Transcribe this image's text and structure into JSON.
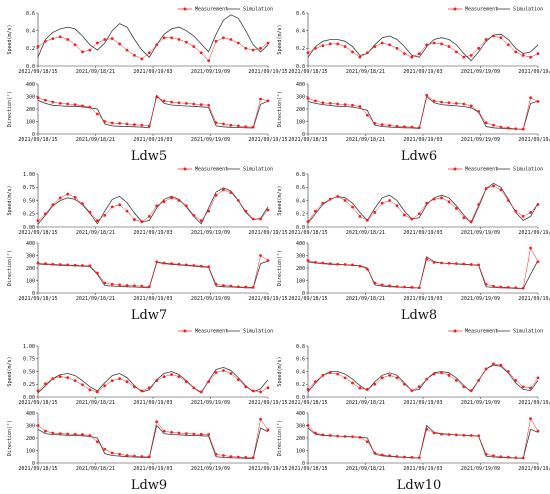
{
  "legend": {
    "measurement": "Measurement",
    "simulation": "Simulation"
  },
  "labels": {
    "speed": "Speed(m/s)",
    "direction": "Direction(°)"
  },
  "x_ticks": [
    "2021/09/18/15",
    "2021/09/18/21",
    "2021/09/19/03",
    "2021/09/19/09",
    "2021/09/19/15"
  ],
  "colors": {
    "measurement": "#ff1a1a",
    "simulation": "#3c3c3c",
    "axis": "#333333"
  },
  "chart_data": [
    {
      "type": "line",
      "caption": "Ldw5",
      "speed": {
        "ylim": [
          0,
          0.6
        ],
        "yticks": [
          "0.0",
          "0.2",
          "0.4",
          "0.6"
        ],
        "measurement": [
          0.22,
          0.28,
          0.31,
          0.33,
          0.3,
          0.24,
          0.16,
          0.18,
          0.26,
          0.3,
          0.31,
          0.25,
          0.18,
          0.12,
          0.08,
          0.15,
          0.24,
          0.32,
          0.32,
          0.3,
          0.27,
          0.22,
          0.15,
          0.06,
          0.28,
          0.32,
          0.3,
          0.26,
          0.2,
          0.18,
          0.2,
          0.26
        ],
        "simulation": [
          0.1,
          0.3,
          0.38,
          0.42,
          0.44,
          0.42,
          0.34,
          0.24,
          0.18,
          0.26,
          0.4,
          0.48,
          0.44,
          0.3,
          0.18,
          0.1,
          0.24,
          0.36,
          0.42,
          0.44,
          0.4,
          0.34,
          0.25,
          0.16,
          0.36,
          0.52,
          0.58,
          0.54,
          0.4,
          0.24,
          0.16,
          0.24
        ]
      },
      "direction": {
        "ylim": [
          0,
          400
        ],
        "yticks": [
          "0",
          "100",
          "200",
          "300",
          "400"
        ],
        "measurement": [
          290,
          270,
          255,
          245,
          240,
          235,
          225,
          215,
          160,
          100,
          88,
          85,
          80,
          75,
          70,
          65,
          295,
          265,
          255,
          250,
          245,
          240,
          235,
          230,
          90,
          80,
          70,
          65,
          58,
          55,
          280,
          265
        ],
        "simulation": [
          270,
          245,
          230,
          225,
          222,
          222,
          218,
          210,
          200,
          80,
          65,
          62,
          60,
          58,
          55,
          50,
          310,
          245,
          232,
          228,
          224,
          222,
          218,
          212,
          65,
          58,
          54,
          52,
          50,
          48,
          238,
          262
        ]
      }
    },
    {
      "type": "line",
      "caption": "Ldw6",
      "speed": {
        "ylim": [
          0,
          0.6
        ],
        "yticks": [
          "0.0",
          "0.2",
          "0.4",
          "0.6"
        ],
        "measurement": [
          0.15,
          0.2,
          0.23,
          0.25,
          0.25,
          0.22,
          0.16,
          0.1,
          0.15,
          0.22,
          0.26,
          0.24,
          0.2,
          0.14,
          0.1,
          0.14,
          0.24,
          0.26,
          0.25,
          0.22,
          0.16,
          0.1,
          0.12,
          0.2,
          0.3,
          0.34,
          0.32,
          0.24,
          0.16,
          0.12,
          0.1,
          0.14
        ],
        "simulation": [
          0.1,
          0.22,
          0.28,
          0.3,
          0.3,
          0.28,
          0.22,
          0.12,
          0.14,
          0.24,
          0.32,
          0.34,
          0.3,
          0.22,
          0.12,
          0.1,
          0.22,
          0.3,
          0.32,
          0.3,
          0.24,
          0.14,
          0.06,
          0.16,
          0.28,
          0.35,
          0.36,
          0.3,
          0.2,
          0.14,
          0.16,
          0.24
        ]
      },
      "direction": {
        "ylim": [
          0,
          400
        ],
        "yticks": [
          "0",
          "100",
          "200",
          "300",
          "400"
        ],
        "measurement": [
          285,
          265,
          250,
          245,
          240,
          235,
          230,
          220,
          150,
          85,
          75,
          68,
          62,
          58,
          55,
          50,
          310,
          265,
          255,
          250,
          245,
          240,
          225,
          180,
          90,
          70,
          55,
          48,
          42,
          38,
          290,
          260
        ],
        "simulation": [
          260,
          245,
          235,
          228,
          222,
          220,
          215,
          205,
          190,
          70,
          60,
          55,
          52,
          50,
          48,
          45,
          300,
          250,
          235,
          230,
          225,
          220,
          210,
          175,
          60,
          50,
          45,
          42,
          40,
          38,
          245,
          262
        ]
      }
    },
    {
      "type": "line",
      "caption": "Ldw7",
      "speed": {
        "ylim": [
          0,
          1.0
        ],
        "yticks": [
          "0.00",
          "0.25",
          "0.50",
          "0.75",
          "1.00"
        ],
        "measurement": [
          0.12,
          0.25,
          0.42,
          0.55,
          0.62,
          0.56,
          0.44,
          0.28,
          0.12,
          0.22,
          0.38,
          0.42,
          0.3,
          0.14,
          0.1,
          0.2,
          0.4,
          0.48,
          0.55,
          0.5,
          0.4,
          0.22,
          0.12,
          0.3,
          0.6,
          0.7,
          0.65,
          0.5,
          0.3,
          0.15,
          0.15,
          0.32
        ],
        "simulation": [
          0.05,
          0.22,
          0.4,
          0.5,
          0.55,
          0.52,
          0.42,
          0.26,
          0.06,
          0.3,
          0.52,
          0.58,
          0.46,
          0.26,
          0.1,
          0.12,
          0.36,
          0.52,
          0.58,
          0.52,
          0.38,
          0.2,
          0.06,
          0.36,
          0.66,
          0.74,
          0.68,
          0.5,
          0.28,
          0.14,
          0.16,
          0.38
        ]
      },
      "direction": {
        "ylim": [
          0,
          400
        ],
        "yticks": [
          "0",
          "100",
          "200",
          "300",
          "400"
        ],
        "measurement": [
          240,
          235,
          230,
          228,
          225,
          222,
          220,
          218,
          160,
          80,
          70,
          65,
          60,
          58,
          55,
          50,
          250,
          240,
          235,
          230,
          225,
          220,
          215,
          210,
          70,
          60,
          55,
          50,
          48,
          45,
          300,
          260
        ],
        "simulation": [
          232,
          228,
          225,
          222,
          220,
          218,
          215,
          212,
          150,
          60,
          55,
          52,
          50,
          48,
          45,
          42,
          245,
          235,
          230,
          225,
          220,
          215,
          210,
          205,
          55,
          50,
          48,
          45,
          42,
          40,
          235,
          255
        ]
      }
    },
    {
      "type": "line",
      "caption": "Ldw8",
      "speed": {
        "ylim": [
          0,
          0.8
        ],
        "yticks": [
          "0.0",
          "0.2",
          "0.4",
          "0.6",
          "0.8"
        ],
        "measurement": [
          0.08,
          0.24,
          0.36,
          0.42,
          0.46,
          0.4,
          0.3,
          0.16,
          0.1,
          0.22,
          0.36,
          0.4,
          0.32,
          0.18,
          0.12,
          0.2,
          0.36,
          0.42,
          0.44,
          0.38,
          0.28,
          0.14,
          0.08,
          0.34,
          0.58,
          0.62,
          0.56,
          0.4,
          0.24,
          0.16,
          0.22,
          0.34
        ],
        "simulation": [
          0.06,
          0.2,
          0.34,
          0.42,
          0.46,
          0.44,
          0.36,
          0.22,
          0.1,
          0.28,
          0.44,
          0.48,
          0.4,
          0.24,
          0.12,
          0.14,
          0.34,
          0.44,
          0.48,
          0.44,
          0.32,
          0.18,
          0.06,
          0.3,
          0.58,
          0.66,
          0.6,
          0.42,
          0.22,
          0.1,
          0.16,
          0.36
        ]
      },
      "direction": {
        "ylim": [
          0,
          400
        ],
        "yticks": [
          "0",
          "100",
          "200",
          "300",
          "400"
        ],
        "measurement": [
          260,
          245,
          240,
          235,
          230,
          228,
          225,
          215,
          190,
          80,
          65,
          58,
          52,
          48,
          45,
          42,
          270,
          245,
          240,
          238,
          235,
          232,
          228,
          225,
          70,
          55,
          48,
          45,
          42,
          38,
          360,
          250
        ],
        "simulation": [
          250,
          240,
          235,
          230,
          228,
          225,
          222,
          218,
          200,
          65,
          55,
          50,
          48,
          45,
          42,
          40,
          290,
          250,
          240,
          235,
          232,
          228,
          225,
          222,
          50,
          45,
          42,
          40,
          38,
          35,
          150,
          260
        ]
      }
    },
    {
      "type": "line",
      "caption": "Ldw9",
      "speed": {
        "ylim": [
          0,
          1.0
        ],
        "yticks": [
          "0.00",
          "0.25",
          "0.50",
          "0.75",
          "1.00"
        ],
        "measurement": [
          0.12,
          0.26,
          0.36,
          0.4,
          0.38,
          0.32,
          0.24,
          0.14,
          0.1,
          0.22,
          0.32,
          0.36,
          0.3,
          0.2,
          0.12,
          0.18,
          0.32,
          0.4,
          0.44,
          0.4,
          0.3,
          0.18,
          0.1,
          0.3,
          0.48,
          0.52,
          0.46,
          0.34,
          0.2,
          0.12,
          0.1,
          0.18
        ],
        "simulation": [
          0.08,
          0.22,
          0.36,
          0.44,
          0.46,
          0.42,
          0.32,
          0.2,
          0.12,
          0.28,
          0.42,
          0.46,
          0.38,
          0.22,
          0.1,
          0.14,
          0.34,
          0.46,
          0.5,
          0.44,
          0.32,
          0.18,
          0.08,
          0.32,
          0.54,
          0.58,
          0.52,
          0.38,
          0.22,
          0.1,
          0.16,
          0.34
        ]
      },
      "direction": {
        "ylim": [
          0,
          400
        ],
        "yticks": [
          "0",
          "100",
          "200",
          "300",
          "400"
        ],
        "measurement": [
          300,
          255,
          240,
          235,
          232,
          230,
          228,
          220,
          170,
          110,
          80,
          70,
          60,
          55,
          52,
          50,
          330,
          255,
          245,
          240,
          235,
          232,
          230,
          228,
          70,
          60,
          52,
          48,
          45,
          42,
          350,
          265
        ],
        "simulation": [
          270,
          235,
          228,
          225,
          222,
          220,
          218,
          212,
          200,
          75,
          60,
          55,
          50,
          48,
          45,
          42,
          300,
          235,
          228,
          225,
          222,
          220,
          218,
          215,
          50,
          45,
          42,
          40,
          38,
          36,
          280,
          250
        ]
      }
    },
    {
      "type": "line",
      "caption": "Ldw10",
      "speed": {
        "ylim": [
          0,
          0.8
        ],
        "yticks": [
          "0.0",
          "0.2",
          "0.4",
          "0.6",
          "0.8"
        ],
        "measurement": [
          0.12,
          0.24,
          0.34,
          0.38,
          0.36,
          0.3,
          0.22,
          0.14,
          0.12,
          0.2,
          0.3,
          0.34,
          0.3,
          0.2,
          0.1,
          0.16,
          0.28,
          0.36,
          0.38,
          0.34,
          0.26,
          0.16,
          0.1,
          0.26,
          0.44,
          0.52,
          0.5,
          0.4,
          0.26,
          0.16,
          0.14,
          0.3
        ],
        "simulation": [
          0.08,
          0.22,
          0.34,
          0.4,
          0.4,
          0.36,
          0.28,
          0.18,
          0.1,
          0.24,
          0.34,
          0.38,
          0.34,
          0.22,
          0.1,
          0.12,
          0.28,
          0.38,
          0.4,
          0.38,
          0.3,
          0.18,
          0.08,
          0.26,
          0.44,
          0.5,
          0.48,
          0.38,
          0.22,
          0.12,
          0.1,
          0.26
        ]
      },
      "direction": {
        "ylim": [
          0,
          400
        ],
        "yticks": [
          "0",
          "100",
          "200",
          "300",
          "400"
        ],
        "measurement": [
          300,
          240,
          225,
          220,
          215,
          212,
          210,
          205,
          170,
          80,
          65,
          58,
          52,
          48,
          45,
          42,
          270,
          240,
          230,
          228,
          225,
          222,
          220,
          218,
          70,
          58,
          50,
          46,
          42,
          40,
          355,
          255
        ],
        "simulation": [
          280,
          230,
          222,
          218,
          215,
          212,
          210,
          206,
          200,
          70,
          58,
          52,
          48,
          45,
          42,
          40,
          300,
          245,
          235,
          230,
          225,
          222,
          218,
          215,
          55,
          48,
          44,
          42,
          40,
          38,
          270,
          245
        ]
      }
    }
  ]
}
